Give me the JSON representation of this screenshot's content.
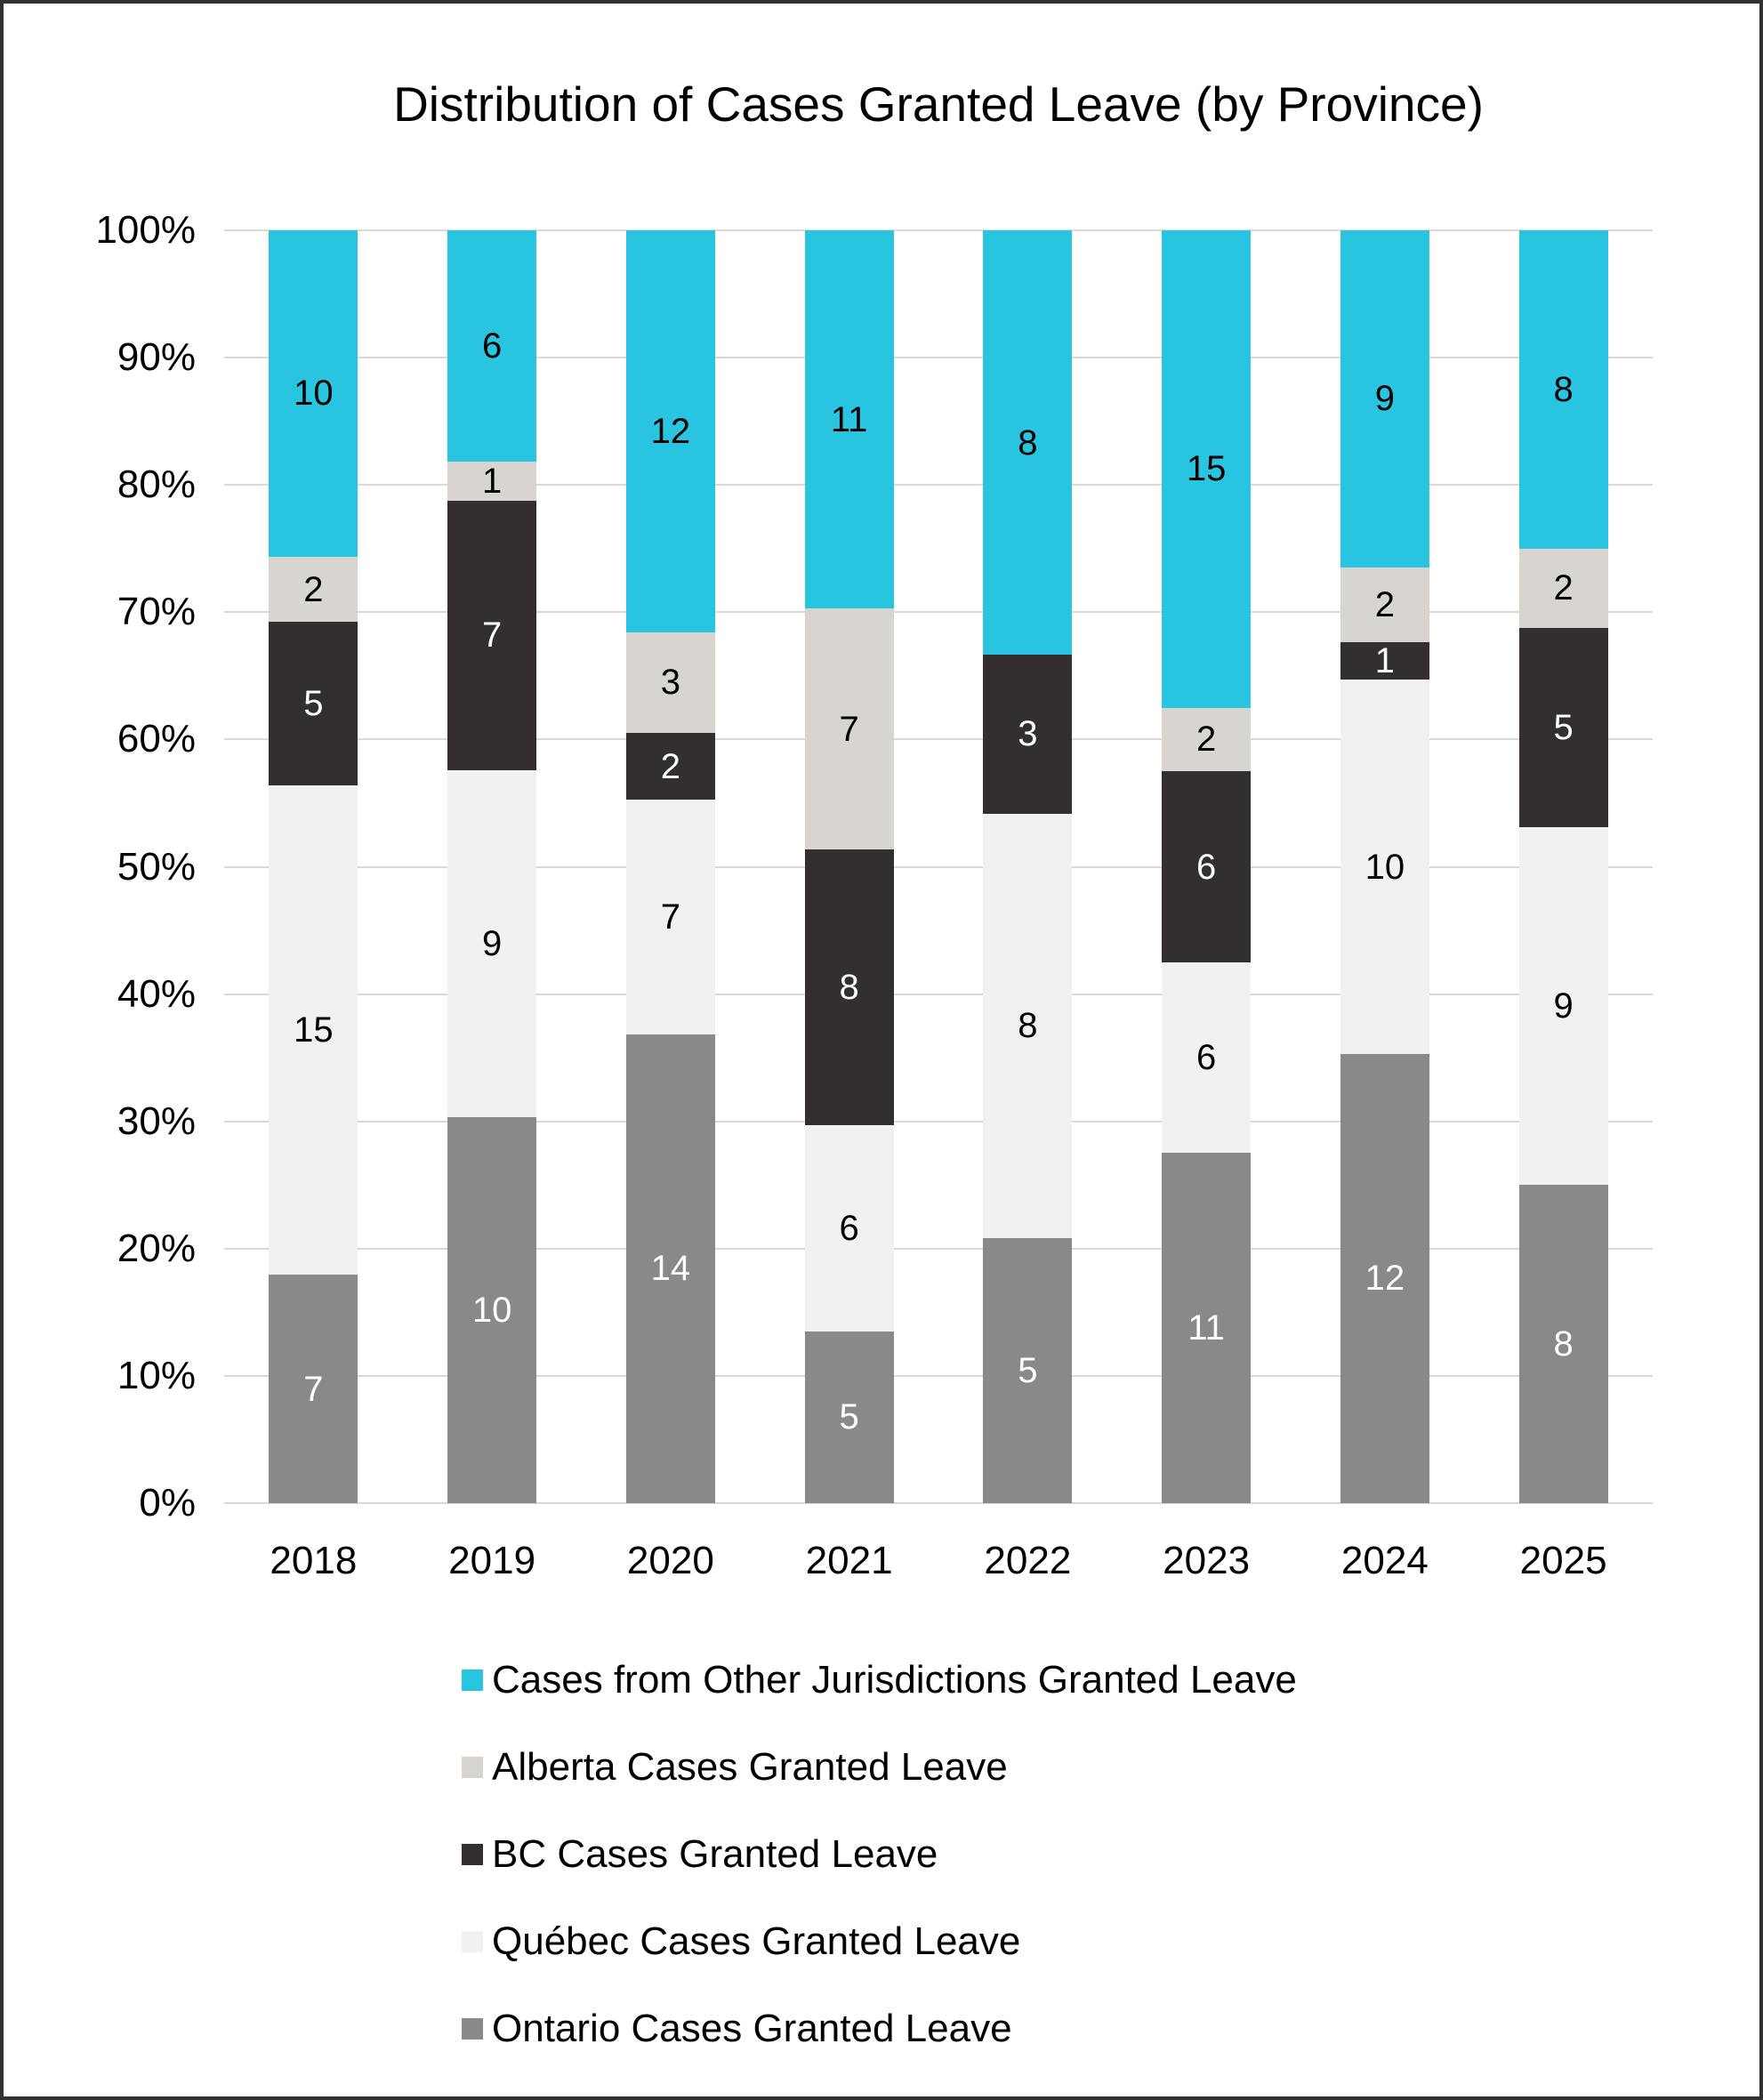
{
  "chart_data": {
    "type": "bar",
    "variant": "stacked-100-percent",
    "title": "Distribution of Cases Granted Leave (by Province)",
    "categories": [
      "2018",
      "2019",
      "2020",
      "2021",
      "2022",
      "2023",
      "2024",
      "2025"
    ],
    "series": [
      {
        "key": "ontario",
        "name": "Ontario Cases Granted Leave",
        "color": "#898989",
        "label_color": "#ffffff",
        "values": [
          7,
          10,
          14,
          5,
          5,
          11,
          12,
          8
        ]
      },
      {
        "key": "quebec",
        "name": "Québec Cases Granted Leave",
        "color": "#F2F1EF",
        "label_color": "#000000",
        "values": [
          15,
          9,
          7,
          6,
          8,
          6,
          10,
          9
        ]
      },
      {
        "key": "bc",
        "name": "BC Cases Granted Leave",
        "color": "#332F2F",
        "label_color": "#ffffff",
        "values": [
          5,
          7,
          2,
          8,
          3,
          6,
          1,
          5
        ]
      },
      {
        "key": "alberta",
        "name": "Alberta Cases Granted Leave",
        "color": "#D8D5D1",
        "label_color": "#000000",
        "values": [
          2,
          1,
          3,
          7,
          0,
          2,
          2,
          2
        ]
      },
      {
        "key": "other",
        "name": "Cases from Other Jurisdictions Granted Leave",
        "color": "#29C5E0",
        "label_color": "#000000",
        "values": [
          10,
          6,
          12,
          11,
          8,
          15,
          9,
          8
        ]
      }
    ],
    "legend_order": [
      "other",
      "alberta",
      "bc",
      "quebec",
      "ontario"
    ],
    "legend_position": "bottom",
    "y_ticks": [
      "0%",
      "10%",
      "20%",
      "30%",
      "40%",
      "50%",
      "60%",
      "70%",
      "80%",
      "90%",
      "100%"
    ],
    "ylim": [
      0,
      100
    ],
    "grid": true,
    "grid_color": "#D9D9D9",
    "xlabel": "",
    "ylabel": ""
  }
}
